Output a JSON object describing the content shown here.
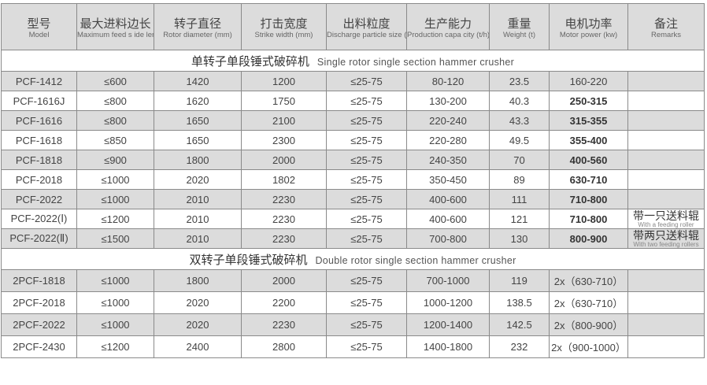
{
  "headers": [
    {
      "zh": "型号",
      "en": "Model"
    },
    {
      "zh": "最大进料边长",
      "en": "Maximum feed s ide length (mm)"
    },
    {
      "zh": "转子直径",
      "en": "Rotor diameter (mm)"
    },
    {
      "zh": "打击宽度",
      "en": "Strike width (mm)"
    },
    {
      "zh": "出料粒度",
      "en": "Discharge particle size (mm)"
    },
    {
      "zh": "生产能力",
      "en": "Production capa city (t/h)"
    },
    {
      "zh": "重量",
      "en": "Weight (t)"
    },
    {
      "zh": "电机功率",
      "en": "Motor power (kw)"
    },
    {
      "zh": "备注",
      "en": "Remarks"
    }
  ],
  "sections": [
    {
      "zh": "单转子单段锤式破碎机",
      "en": "Single rotor single section hammer crusher",
      "rows": [
        [
          "PCF-1412",
          "≤600",
          "1420",
          "1200",
          "≤25-75",
          "80-120",
          "23.5",
          "160-220",
          ""
        ],
        [
          "PCF-1616J",
          "≤800",
          "1620",
          "1750",
          "≤25-75",
          "130-200",
          "40.3",
          "250-315",
          ""
        ],
        [
          "PCF-1616",
          "≤800",
          "1650",
          "2100",
          "≤25-75",
          "220-240",
          "43.3",
          "315-355",
          ""
        ],
        [
          "PCF-1618",
          "≤850",
          "1650",
          "2300",
          "≤25-75",
          "220-280",
          "49.5",
          "355-400",
          ""
        ],
        [
          "PCF-1818",
          "≤900",
          "1800",
          "2000",
          "≤25-75",
          "240-350",
          "70",
          "400-560",
          ""
        ],
        [
          "PCF-2018",
          "≤1000",
          "2020",
          "1802",
          "≤25-75",
          "350-450",
          "89",
          "630-710",
          ""
        ],
        [
          "PCF-2022",
          "≤1000",
          "2010",
          "2230",
          "≤25-75",
          "400-600",
          "111",
          "710-800",
          ""
        ],
        [
          "PCF-2022(Ⅰ)",
          "≤1200",
          "2010",
          "2230",
          "≤25-75",
          "400-600",
          "121",
          "710-800",
          ""
        ],
        [
          "PCF-2022(Ⅱ)",
          "≤1500",
          "2010",
          "2230",
          "≤25-75",
          "700-800",
          "130",
          "800-900",
          ""
        ]
      ],
      "remarks": [
        {
          "row": 7,
          "zh": "带一只送料辊",
          "en": "With a feeding roller"
        },
        {
          "row": 8,
          "zh": "带两只送料辊",
          "en": "With two feeding rollers"
        }
      ]
    },
    {
      "zh": "双转子单段锤式破碎机",
      "en": "Double rotor single section hammer crusher",
      "rows": [
        [
          "2PCF-1818",
          "≤1000",
          "1800",
          "2000",
          "≤25-75",
          "700-1000",
          "119",
          "2x（630-710）",
          ""
        ],
        [
          "2PCF-2018",
          "≤1000",
          "2020",
          "2200",
          "≤25-75",
          "1000-1200",
          "138.5",
          "2x（630-710）",
          ""
        ],
        [
          "2PCF-2022",
          "≤1000",
          "2020",
          "2230",
          "≤25-75",
          "1200-1400",
          "142.5",
          "2x（800-900）",
          ""
        ],
        [
          "2PCF-2430",
          "≤1200",
          "2400",
          "2800",
          "≤25-75",
          "1400-1800",
          "232",
          "2x（900-1000）",
          ""
        ]
      ],
      "remarks": []
    }
  ]
}
